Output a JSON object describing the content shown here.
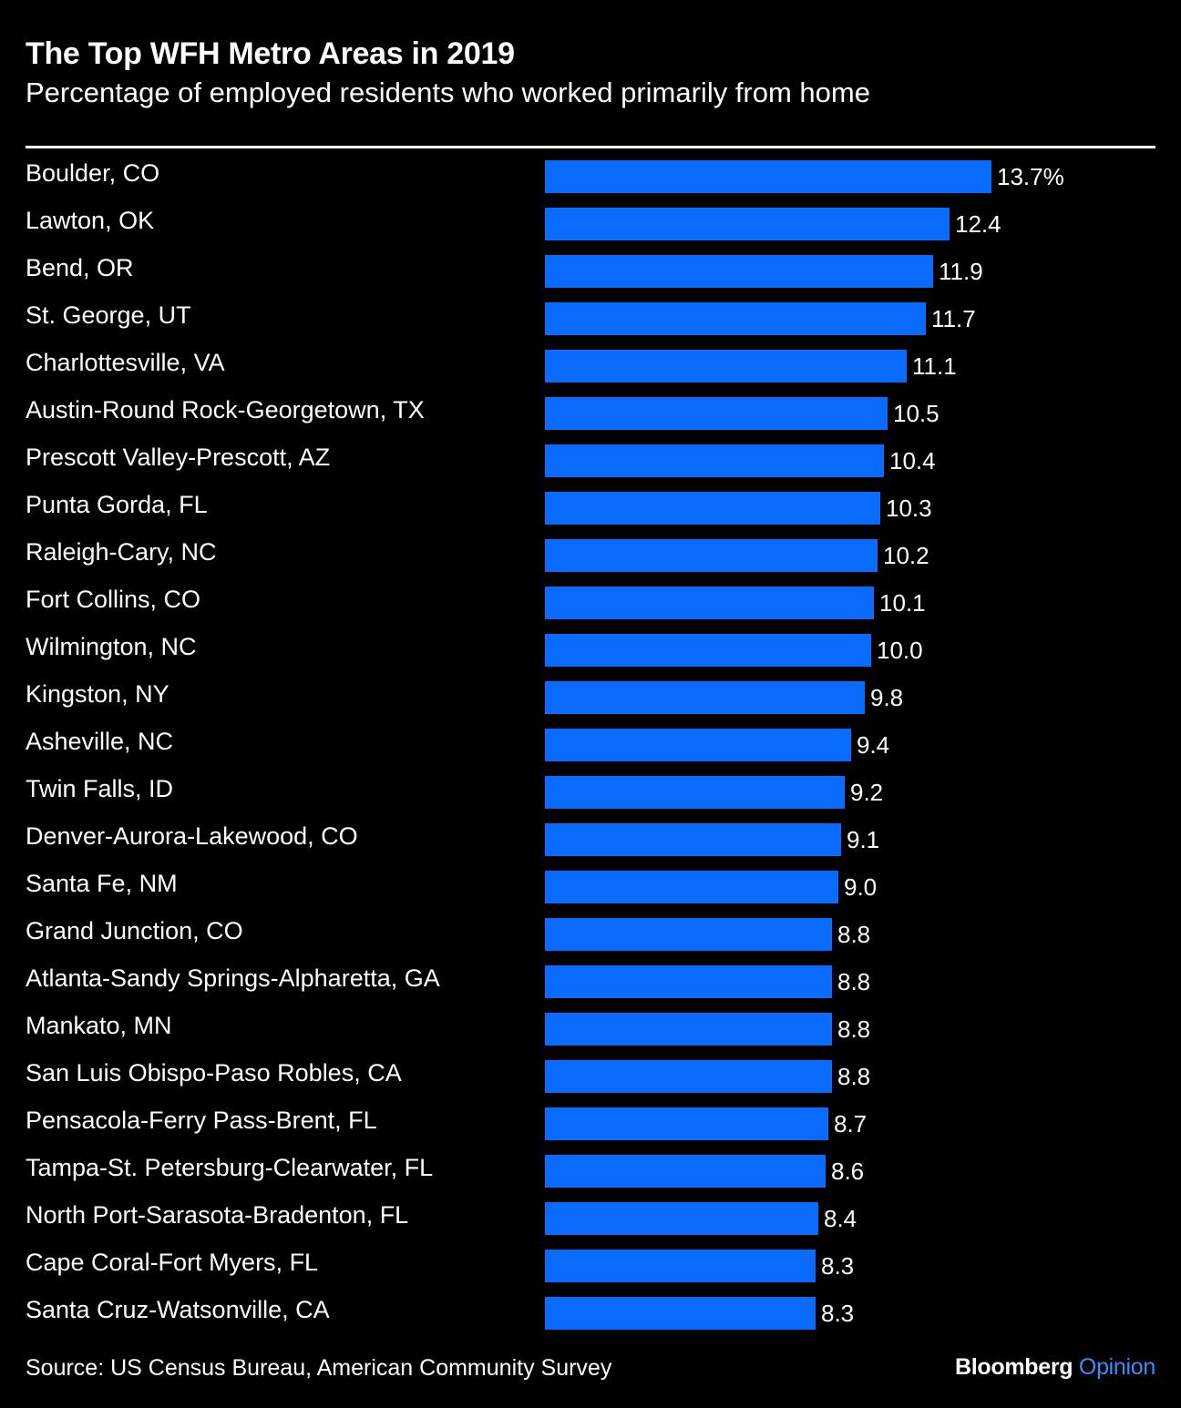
{
  "chart_data": {
    "type": "bar",
    "orientation": "horizontal",
    "title": "The Top WFH Metro Areas in 2019",
    "subtitle": "Percentage of employed residents who worked primarily from home",
    "categories": [
      "Boulder, CO",
      "Lawton, OK",
      "Bend, OR",
      "St. George, UT",
      "Charlottesville, VA",
      "Austin-Round Rock-Georgetown, TX",
      "Prescott Valley-Prescott, AZ",
      "Punta Gorda, FL",
      "Raleigh-Cary, NC",
      "Fort Collins, CO",
      "Wilmington, NC",
      "Kingston, NY",
      "Asheville, NC",
      "Twin Falls, ID",
      "Denver-Aurora-Lakewood, CO",
      "Santa Fe, NM",
      "Grand Junction, CO",
      "Atlanta-Sandy Springs-Alpharetta, GA",
      "Mankato, MN",
      "San Luis Obispo-Paso Robles, CA",
      "Pensacola-Ferry Pass-Brent, FL",
      "Tampa-St. Petersburg-Clearwater, FL",
      "North Port-Sarasota-Bradenton, FL",
      "Cape Coral-Fort Myers, FL",
      "Santa Cruz-Watsonville, CA"
    ],
    "values": [
      13.7,
      12.4,
      11.9,
      11.7,
      11.1,
      10.5,
      10.4,
      10.3,
      10.2,
      10.1,
      10.0,
      9.8,
      9.4,
      9.2,
      9.1,
      9.0,
      8.8,
      8.8,
      8.8,
      8.8,
      8.7,
      8.6,
      8.4,
      8.3,
      8.3
    ],
    "value_labels": [
      "13.7%",
      "12.4",
      "11.9",
      "11.7",
      "11.1",
      "10.5",
      "10.4",
      "10.3",
      "10.2",
      "10.1",
      "10.0",
      "9.8",
      "9.4",
      "9.2",
      "9.1",
      "9.0",
      "8.8",
      "8.8",
      "8.8",
      "8.8",
      "8.7",
      "8.6",
      "8.4",
      "8.3",
      "8.3"
    ],
    "xlim": [
      0,
      13.7
    ],
    "bar_color": "#0a6cff",
    "grid": false,
    "legend": "none"
  },
  "source": "Source: US Census Bureau, American Community Survey",
  "brand": {
    "name": "Bloomberg",
    "section": "Opinion",
    "section_color": "#3a8dff"
  }
}
